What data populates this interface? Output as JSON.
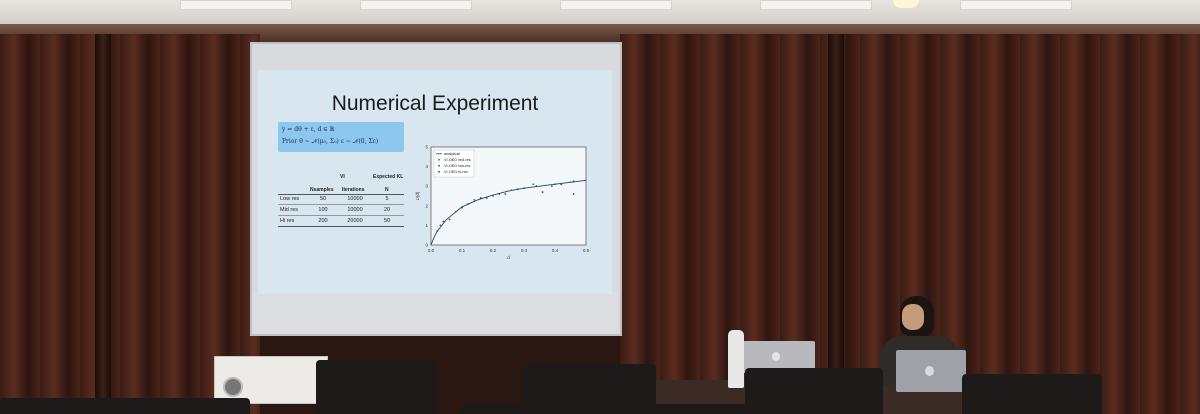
{
  "slide": {
    "title": "Numerical Experiment",
    "formula_line1": "y = dθ + ε,   d ∈ ℝ",
    "formula_line2": "Prior θ ~ 𝒩(μ₀, Σ₀)     ε ~ 𝒩(0, Σε)",
    "table": {
      "group_vi": "VI",
      "group_kl": "Expected KL",
      "col_nsamples": "Nsamples",
      "col_iterations": "Iterations",
      "col_n": "N",
      "rows": [
        {
          "label": "Low res",
          "nsamples": "50",
          "iterations": "10000",
          "n": "5"
        },
        {
          "label": "Mid res",
          "nsamples": "100",
          "iterations": "10000",
          "n": "20"
        },
        {
          "label": "Hi res",
          "nsamples": "200",
          "iterations": "20000",
          "n": "50"
        }
      ]
    }
  },
  "chart_data": {
    "type": "line",
    "xlabel": "d",
    "ylabel": "U(d)",
    "xlim": [
      0.0,
      0.5
    ],
    "ylim": [
      0,
      5
    ],
    "xticks": [
      "0.0",
      "0.1",
      "0.2",
      "0.3",
      "0.4",
      "0.5"
    ],
    "yticks": [
      "0",
      "1",
      "2",
      "3",
      "4",
      "5"
    ],
    "legend_position": "top-left",
    "series": [
      {
        "name": "analytical",
        "kind": "line",
        "color": "#1f3f8a",
        "x": [
          0.0,
          0.01,
          0.02,
          0.05,
          0.1,
          0.15,
          0.2,
          0.25,
          0.3,
          0.35,
          0.4,
          0.45,
          0.5
        ],
        "y": [
          0.0,
          0.4,
          0.7,
          1.3,
          1.95,
          2.3,
          2.55,
          2.75,
          2.9,
          3.0,
          3.1,
          3.2,
          3.3
        ]
      },
      {
        "name": "VI-OED mid-res",
        "kind": "scatter",
        "color": "#2e7d32",
        "x": [
          0.03,
          0.08,
          0.14,
          0.2,
          0.26,
          0.33,
          0.39,
          0.45
        ],
        "y": [
          1.0,
          1.7,
          2.3,
          2.5,
          2.8,
          3.1,
          3.0,
          3.2
        ]
      },
      {
        "name": "VI-OED low-res",
        "kind": "scatter",
        "color": "#444444",
        "x": [
          0.02,
          0.06,
          0.12,
          0.18,
          0.24,
          0.3,
          0.36,
          0.42,
          0.46
        ],
        "y": [
          0.7,
          1.3,
          2.1,
          2.4,
          2.6,
          2.9,
          2.7,
          3.1,
          2.6
        ]
      },
      {
        "name": "VI-OED hi-res",
        "kind": "scatter",
        "color": "#1b5e20",
        "x": [
          0.04,
          0.1,
          0.16,
          0.22,
          0.28,
          0.34,
          0.4,
          0.46
        ],
        "y": [
          1.2,
          1.9,
          2.4,
          2.6,
          2.85,
          3.0,
          3.1,
          3.25
        ]
      }
    ]
  }
}
